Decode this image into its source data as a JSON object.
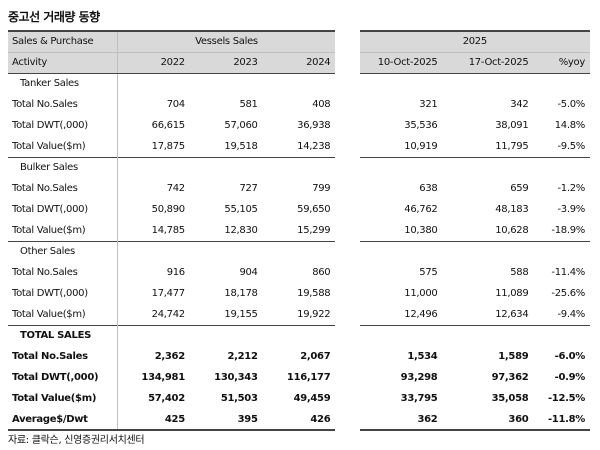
{
  "title": "중고선 거래량 동향",
  "header": {
    "row1_label": "Sales & Purchase",
    "row2_label": "Activity",
    "group_vessels": "Vessels Sales",
    "group_2025": "2025",
    "years": [
      "2022",
      "2023",
      "2024"
    ],
    "dates": [
      "10-Oct-2025",
      "17-Oct-2025"
    ],
    "yoy": "%yoy"
  },
  "sections": [
    {
      "name": "Tanker Sales",
      "rows": [
        {
          "label": "Total No.Sales",
          "values": [
            "704",
            "581",
            "408"
          ],
          "d1": "321",
          "d2": "342",
          "yoy": "-5.0%"
        },
        {
          "label": "Total DWT(,000)",
          "values": [
            "66,615",
            "57,060",
            "36,938"
          ],
          "d1": "35,536",
          "d2": "38,091",
          "yoy": "14.8%"
        },
        {
          "label": "Total Value($m)",
          "values": [
            "17,875",
            "19,518",
            "14,238"
          ],
          "d1": "10,919",
          "d2": "11,795",
          "yoy": "-9.5%"
        }
      ]
    },
    {
      "name": "Bulker Sales",
      "rows": [
        {
          "label": "Total No.Sales",
          "values": [
            "742",
            "727",
            "799"
          ],
          "d1": "638",
          "d2": "659",
          "yoy": "-1.2%"
        },
        {
          "label": "Total DWT(,000)",
          "values": [
            "50,890",
            "55,105",
            "59,650"
          ],
          "d1": "46,762",
          "d2": "48,183",
          "yoy": "-3.9%"
        },
        {
          "label": "Total Value($m)",
          "values": [
            "14,785",
            "12,830",
            "15,299"
          ],
          "d1": "10,380",
          "d2": "10,628",
          "yoy": "-18.9%"
        }
      ]
    },
    {
      "name": "Other Sales",
      "rows": [
        {
          "label": "Total No.Sales",
          "values": [
            "916",
            "904",
            "860"
          ],
          "d1": "575",
          "d2": "588",
          "yoy": "-11.4%"
        },
        {
          "label": "Total DWT(,000)",
          "values": [
            "17,477",
            "18,178",
            "19,588"
          ],
          "d1": "11,000",
          "d2": "11,089",
          "yoy": "-25.6%"
        },
        {
          "label": "Total Value($m)",
          "values": [
            "24,742",
            "19,155",
            "19,922"
          ],
          "d1": "12,496",
          "d2": "12,634",
          "yoy": "-9.4%"
        }
      ]
    },
    {
      "name": "TOTAL SALES",
      "total": true,
      "rows": [
        {
          "label": "Total No.Sales",
          "values": [
            "2,362",
            "2,212",
            "2,067"
          ],
          "d1": "1,534",
          "d2": "1,589",
          "yoy": "-6.0%"
        },
        {
          "label": "Total DWT(,000)",
          "values": [
            "134,981",
            "130,343",
            "116,177"
          ],
          "d1": "93,298",
          "d2": "97,362",
          "yoy": "-0.9%"
        },
        {
          "label": "Total Value($m)",
          "values": [
            "57,402",
            "51,503",
            "49,459"
          ],
          "d1": "33,795",
          "d2": "35,058",
          "yoy": "-12.5%"
        },
        {
          "label": "Average$/Dwt",
          "values": [
            "425",
            "395",
            "426"
          ],
          "d1": "362",
          "d2": "360",
          "yoy": "-11.8%"
        }
      ]
    }
  ],
  "source": "자료: 클락슨, 신영증권리서치센터"
}
